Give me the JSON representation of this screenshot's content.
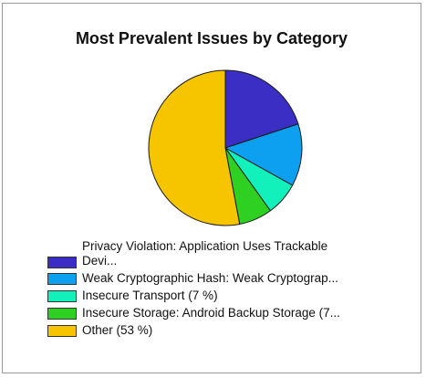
{
  "chart_data": {
    "type": "pie",
    "title": "Most Prevalent Issues by Category",
    "slices": [
      {
        "label": "Privacy Violation: Application Uses Trackable\nDevi...",
        "value": 20,
        "color": "#3a2ec4"
      },
      {
        "label": "Weak Cryptographic Hash: Weak Cryptograp...",
        "value": 13,
        "color": "#0d9ff0"
      },
      {
        "label": "Insecure Transport (7 %)",
        "value": 7,
        "color": "#12f0bb"
      },
      {
        "label": "Insecure Storage: Android Backup Storage (7...",
        "value": 7,
        "color": "#2ed021"
      },
      {
        "label": "Other (53 %)",
        "value": 53,
        "color": "#f7c400"
      }
    ]
  }
}
